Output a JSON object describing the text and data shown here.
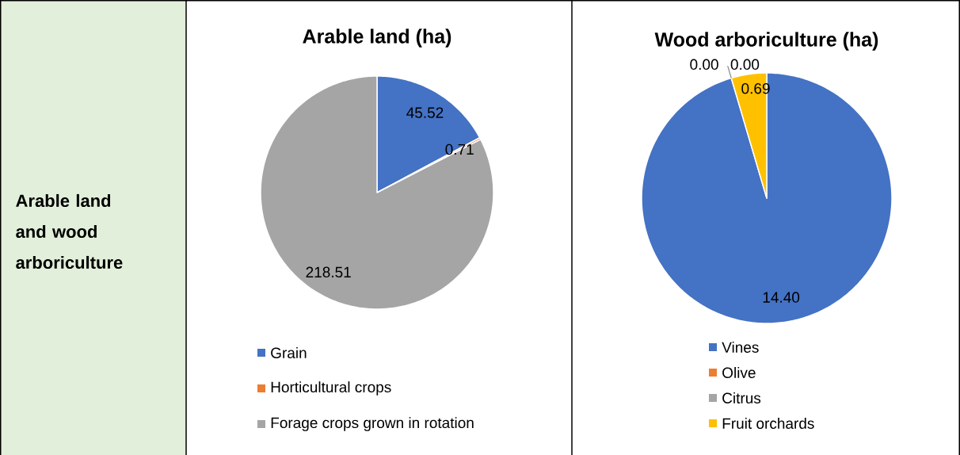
{
  "chart_data": [
    {
      "type": "other",
      "title": "Arable land and wood arboriculture"
    },
    {
      "type": "pie",
      "title": "Arable land (ha)",
      "categories": [
        "Grain",
        "Horticultural crops",
        "Forage crops grown in rotation"
      ],
      "values": [
        45.52,
        0.71,
        218.51
      ],
      "value_labels": [
        "45.52",
        "0.71",
        "218.51"
      ],
      "colors": [
        "#4472c4",
        "#ed7d31",
        "#a5a5a5"
      ],
      "legend": "bottom"
    },
    {
      "type": "pie",
      "title": "Wood arboriculture (ha)",
      "categories": [
        "Vines",
        "Olive",
        "Citrus",
        "Fruit orchards"
      ],
      "values": [
        14.4,
        0.0,
        0.0,
        0.69
      ],
      "value_labels": [
        "14.40",
        "0.00",
        "0.00",
        "0.69"
      ],
      "colors": [
        "#4472c4",
        "#ed7d31",
        "#a5a5a5",
        "#ffc000"
      ],
      "legend": "bottom"
    }
  ]
}
